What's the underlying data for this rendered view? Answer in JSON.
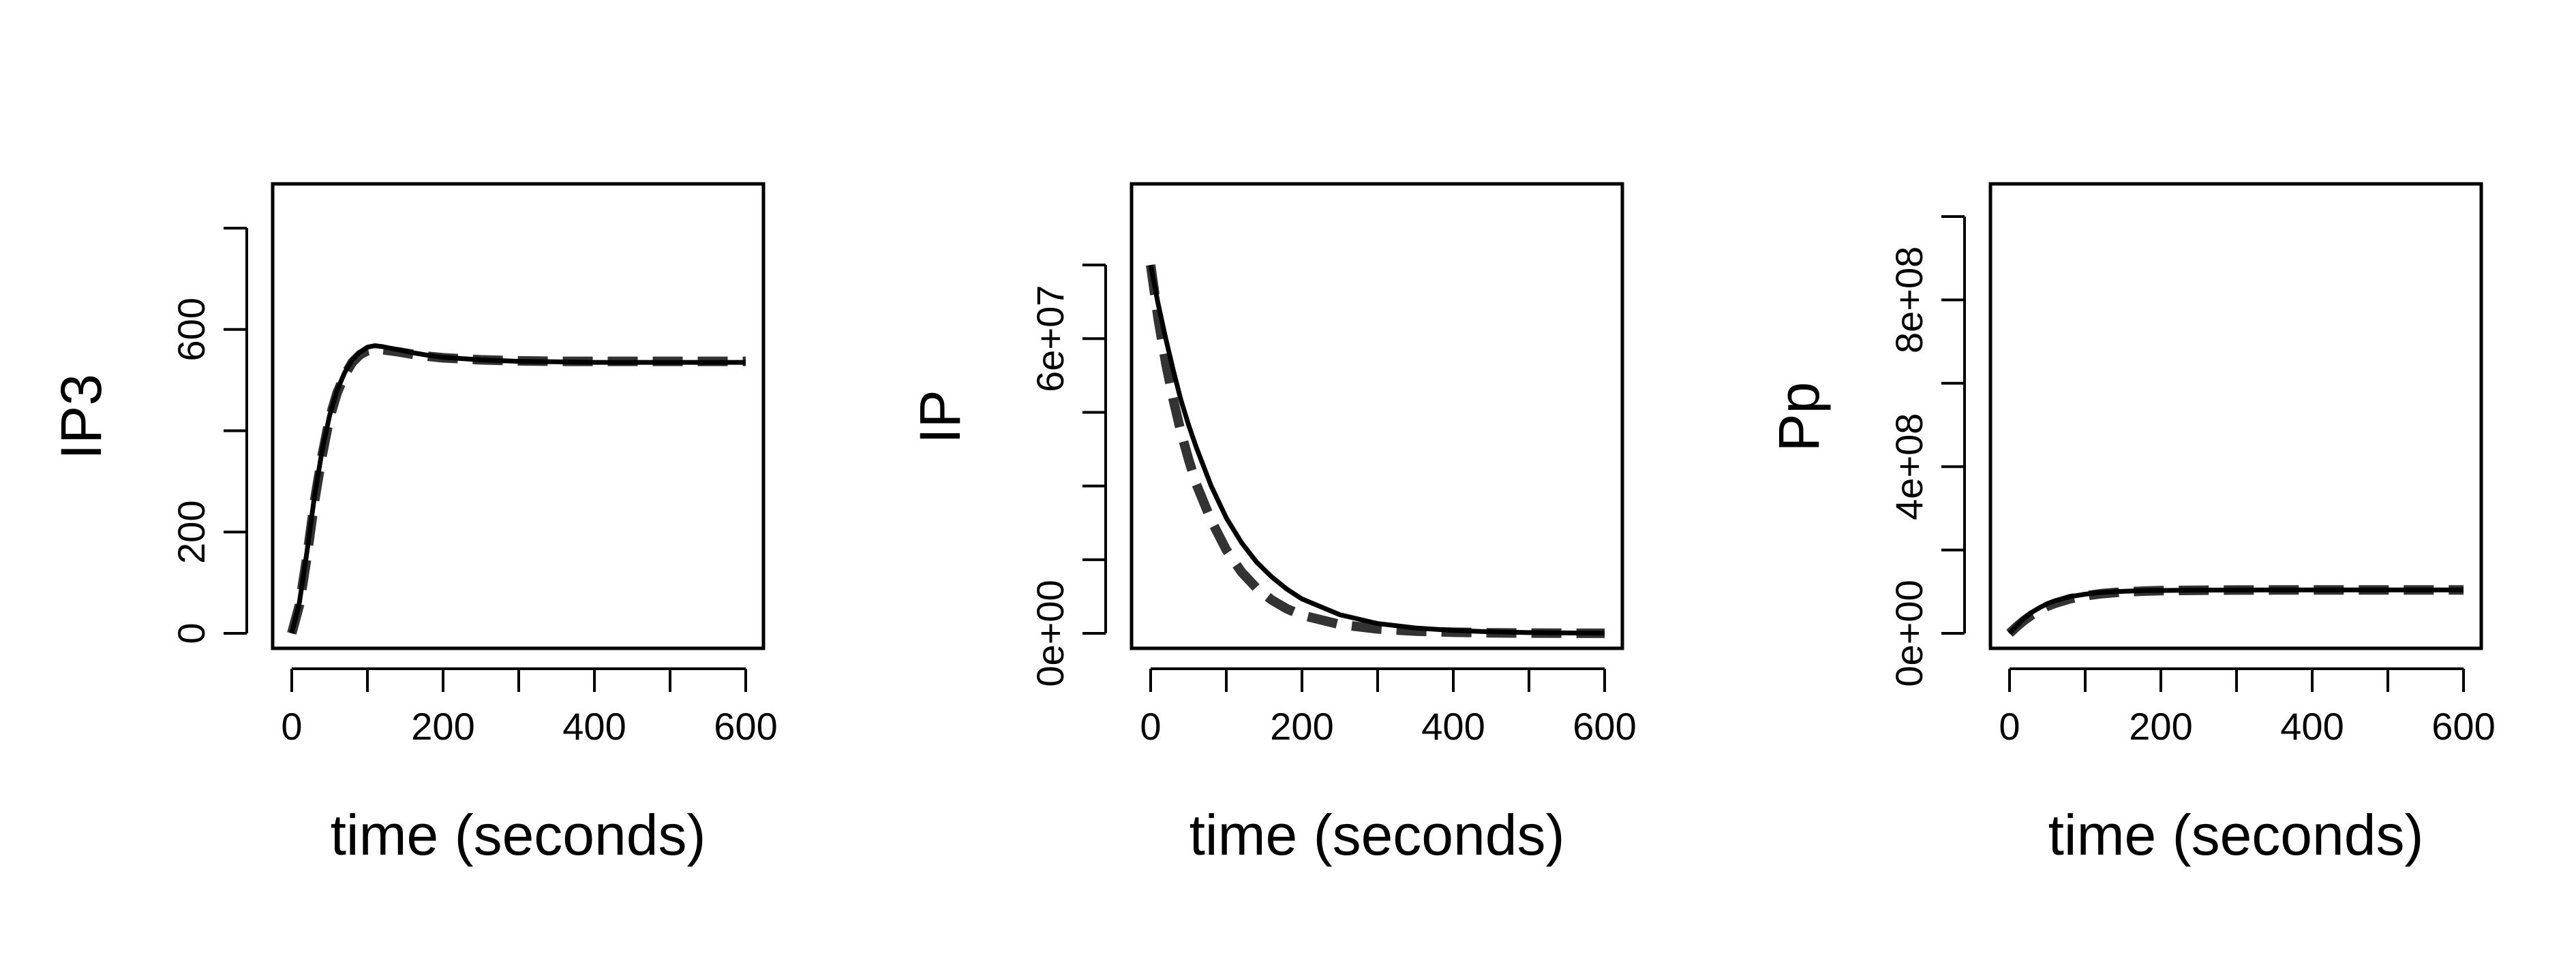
{
  "figure": {
    "background": "#ffffff",
    "colors": {
      "axis": "#000000",
      "model": "#000000",
      "reference": "#333333"
    }
  },
  "chart_data": [
    {
      "type": "line",
      "xlabel": "time (seconds)",
      "ylabel": "IP3",
      "xlim": [
        0,
        600
      ],
      "ylim": [
        0,
        800
      ],
      "xticks": [
        0,
        100,
        200,
        300,
        400,
        500,
        600
      ],
      "xtick_labels": [
        "0",
        "",
        "200",
        "",
        "400",
        "",
        "600"
      ],
      "yticks": [
        0,
        200,
        400,
        600,
        800
      ],
      "ytick_labels": [
        "0",
        "200",
        "",
        "600",
        ""
      ],
      "series": [
        {
          "style": "solid",
          "x": [
            0,
            10,
            20,
            30,
            40,
            50,
            60,
            70,
            80,
            90,
            100,
            110,
            120,
            140,
            160,
            180,
            200,
            250,
            300,
            350,
            400,
            450,
            500,
            550,
            600
          ],
          "y": [
            0,
            60,
            160,
            270,
            360,
            430,
            480,
            515,
            540,
            555,
            565,
            568,
            566,
            560,
            554,
            549,
            545,
            540,
            537,
            536,
            535,
            535,
            535,
            535,
            535
          ]
        },
        {
          "style": "dashed",
          "x": [
            0,
            10,
            20,
            30,
            40,
            50,
            60,
            70,
            80,
            90,
            100,
            110,
            120,
            140,
            160,
            180,
            200,
            250,
            300,
            350,
            400,
            450,
            500,
            550,
            600
          ],
          "y": [
            0,
            55,
            150,
            260,
            350,
            425,
            475,
            510,
            535,
            550,
            558,
            561,
            560,
            556,
            551,
            547,
            544,
            540,
            538,
            537,
            537,
            537,
            537,
            537,
            537
          ]
        }
      ]
    },
    {
      "type": "line",
      "xlabel": "time (seconds)",
      "ylabel": "IP",
      "xlim": [
        0,
        600
      ],
      "ylim": [
        0,
        80000000
      ],
      "xticks": [
        0,
        100,
        200,
        300,
        400,
        500,
        600
      ],
      "xtick_labels": [
        "0",
        "",
        "200",
        "",
        "400",
        "",
        "600"
      ],
      "yticks": [
        0,
        15000000,
        30000000,
        45000000,
        60000000,
        75000000
      ],
      "ytick_labels": [
        "0e+00",
        "",
        "",
        "",
        "6e+07",
        ""
      ],
      "series": [
        {
          "style": "solid",
          "x": [
            0,
            10,
            20,
            30,
            40,
            50,
            60,
            80,
            100,
            120,
            140,
            160,
            180,
            200,
            250,
            300,
            350,
            400,
            450,
            500,
            550,
            600
          ],
          "y": [
            75000000,
            67000000,
            60000000,
            53500000,
            47500000,
            42500000,
            38000000,
            30000000,
            23500000,
            18500000,
            14500000,
            11500000,
            9000000,
            7000000,
            3800000,
            2000000,
            1100000,
            600000,
            300000,
            150000,
            80000,
            40000
          ]
        },
        {
          "style": "dashed",
          "x": [
            0,
            10,
            20,
            30,
            40,
            50,
            60,
            80,
            100,
            120,
            140,
            160,
            180,
            200,
            250,
            300,
            350,
            400,
            450,
            500,
            550,
            600
          ],
          "y": [
            75000000,
            64000000,
            55000000,
            47500000,
            41000000,
            35500000,
            30500000,
            23000000,
            17000000,
            12500000,
            9200000,
            6800000,
            5000000,
            3700000,
            1800000,
            900000,
            450000,
            220000,
            110000,
            55000,
            25000,
            10000
          ]
        }
      ]
    },
    {
      "type": "line",
      "xlabel": "time (seconds)",
      "ylabel": "Pp",
      "xlim": [
        0,
        600
      ],
      "ylim": [
        0,
        1000000000
      ],
      "xticks": [
        0,
        100,
        200,
        300,
        400,
        500,
        600
      ],
      "xtick_labels": [
        "0",
        "",
        "200",
        "",
        "400",
        "",
        "600"
      ],
      "yticks": [
        0,
        200000000,
        400000000,
        600000000,
        800000000,
        1000000000
      ],
      "ytick_labels": [
        "0e+00",
        "",
        "4e+08",
        "",
        "8e+08",
        ""
      ],
      "series": [
        {
          "style": "solid",
          "x": [
            0,
            10,
            20,
            30,
            40,
            50,
            60,
            80,
            100,
            120,
            140,
            160,
            180,
            200,
            250,
            300,
            350,
            400,
            450,
            500,
            550,
            600
          ],
          "y": [
            0,
            20000000,
            37000000,
            51000000,
            62000000,
            71000000,
            78000000,
            88000000,
            94000000,
            98000000,
            100000000,
            101500000,
            102500000,
            103000000,
            103700000,
            104000000,
            104100000,
            104200000,
            104200000,
            104200000,
            104200000,
            104200000
          ]
        },
        {
          "style": "dashed",
          "x": [
            0,
            10,
            20,
            30,
            40,
            50,
            60,
            80,
            100,
            120,
            140,
            160,
            180,
            200,
            250,
            300,
            350,
            400,
            450,
            500,
            550,
            600
          ],
          "y": [
            0,
            17000000,
            32000000,
            45000000,
            56000000,
            65000000,
            72000000,
            83000000,
            90000000,
            95000000,
            98000000,
            100000000,
            101500000,
            102500000,
            103500000,
            104000000,
            104100000,
            104200000,
            104200000,
            104200000,
            104200000,
            104200000
          ]
        }
      ]
    }
  ]
}
